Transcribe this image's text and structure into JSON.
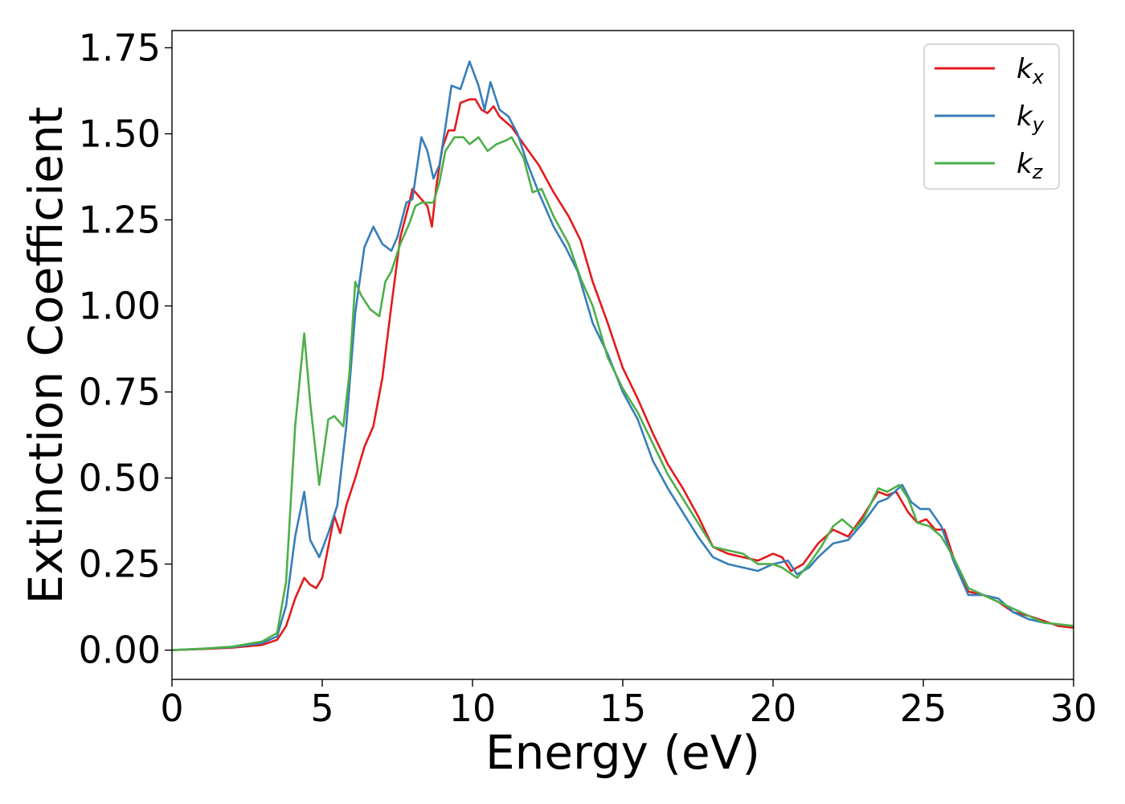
{
  "chart_data": {
    "type": "line",
    "title": "",
    "xlabel": "Energy (eV)",
    "ylabel": "Extinction Coefficient",
    "xlim": [
      0,
      30
    ],
    "ylim": [
      -0.085,
      1.8
    ],
    "xticks": [
      0,
      5,
      10,
      15,
      20,
      25,
      30
    ],
    "xtick_labels": [
      "0",
      "5",
      "10",
      "15",
      "20",
      "25",
      "30"
    ],
    "yticks": [
      0.0,
      0.25,
      0.5,
      0.75,
      1.0,
      1.25,
      1.5,
      1.75
    ],
    "ytick_labels": [
      "0.00",
      "0.25",
      "0.50",
      "0.75",
      "1.00",
      "1.25",
      "1.50",
      "1.75"
    ],
    "grid": false,
    "legend": {
      "position": "top-right",
      "entries": [
        {
          "base": "k",
          "sub": "x",
          "color": "#e41a1c"
        },
        {
          "base": "k",
          "sub": "y",
          "color": "#377eb8"
        },
        {
          "base": "k",
          "sub": "z",
          "color": "#4daf4a"
        }
      ]
    },
    "series": [
      {
        "name": "k_x",
        "color": "#e41a1c",
        "points": [
          [
            0,
            0
          ],
          [
            1,
            0.003
          ],
          [
            2,
            0.007
          ],
          [
            3,
            0.015
          ],
          [
            3.5,
            0.03
          ],
          [
            3.8,
            0.07
          ],
          [
            4.1,
            0.15
          ],
          [
            4.4,
            0.21
          ],
          [
            4.6,
            0.19
          ],
          [
            4.8,
            0.18
          ],
          [
            5.0,
            0.21
          ],
          [
            5.2,
            0.3
          ],
          [
            5.4,
            0.39
          ],
          [
            5.6,
            0.34
          ],
          [
            5.8,
            0.42
          ],
          [
            6.1,
            0.5
          ],
          [
            6.4,
            0.59
          ],
          [
            6.7,
            0.65
          ],
          [
            7.0,
            0.79
          ],
          [
            7.3,
            1.0
          ],
          [
            7.6,
            1.2
          ],
          [
            7.9,
            1.3
          ],
          [
            8.0,
            1.34
          ],
          [
            8.3,
            1.31
          ],
          [
            8.5,
            1.29
          ],
          [
            8.65,
            1.23
          ],
          [
            8.8,
            1.35
          ],
          [
            9.0,
            1.46
          ],
          [
            9.2,
            1.51
          ],
          [
            9.4,
            1.51
          ],
          [
            9.6,
            1.59
          ],
          [
            9.9,
            1.6
          ],
          [
            10.1,
            1.6
          ],
          [
            10.3,
            1.57
          ],
          [
            10.5,
            1.56
          ],
          [
            10.7,
            1.58
          ],
          [
            10.9,
            1.55
          ],
          [
            11.3,
            1.52
          ],
          [
            11.7,
            1.47
          ],
          [
            12.2,
            1.41
          ],
          [
            12.7,
            1.33
          ],
          [
            13.2,
            1.26
          ],
          [
            13.6,
            1.19
          ],
          [
            14.0,
            1.07
          ],
          [
            14.5,
            0.95
          ],
          [
            15.0,
            0.82
          ],
          [
            15.5,
            0.73
          ],
          [
            16.0,
            0.63
          ],
          [
            16.5,
            0.54
          ],
          [
            17.0,
            0.47
          ],
          [
            17.5,
            0.39
          ],
          [
            18.0,
            0.3
          ],
          [
            18.5,
            0.28
          ],
          [
            19.0,
            0.27
          ],
          [
            19.5,
            0.26
          ],
          [
            20.0,
            0.28
          ],
          [
            20.3,
            0.27
          ],
          [
            20.6,
            0.23
          ],
          [
            21.0,
            0.25
          ],
          [
            21.5,
            0.31
          ],
          [
            22.0,
            0.35
          ],
          [
            22.5,
            0.33
          ],
          [
            23.0,
            0.39
          ],
          [
            23.5,
            0.46
          ],
          [
            23.8,
            0.45
          ],
          [
            24.1,
            0.46
          ],
          [
            24.5,
            0.4
          ],
          [
            24.8,
            0.37
          ],
          [
            25.1,
            0.38
          ],
          [
            25.4,
            0.35
          ],
          [
            25.7,
            0.35
          ],
          [
            26.0,
            0.27
          ],
          [
            26.5,
            0.17
          ],
          [
            27.0,
            0.16
          ],
          [
            27.5,
            0.14
          ],
          [
            28.0,
            0.11
          ],
          [
            28.5,
            0.1
          ],
          [
            29.0,
            0.085
          ],
          [
            29.5,
            0.07
          ],
          [
            30.0,
            0.065
          ]
        ]
      },
      {
        "name": "k_y",
        "color": "#377eb8",
        "points": [
          [
            0,
            0
          ],
          [
            1,
            0.004
          ],
          [
            2,
            0.009
          ],
          [
            3,
            0.02
          ],
          [
            3.5,
            0.04
          ],
          [
            3.8,
            0.13
          ],
          [
            4.1,
            0.33
          ],
          [
            4.4,
            0.46
          ],
          [
            4.6,
            0.32
          ],
          [
            4.9,
            0.27
          ],
          [
            5.2,
            0.34
          ],
          [
            5.5,
            0.42
          ],
          [
            5.8,
            0.65
          ],
          [
            6.1,
            0.98
          ],
          [
            6.4,
            1.17
          ],
          [
            6.7,
            1.23
          ],
          [
            7.0,
            1.18
          ],
          [
            7.3,
            1.16
          ],
          [
            7.5,
            1.2
          ],
          [
            7.8,
            1.3
          ],
          [
            8.0,
            1.31
          ],
          [
            8.3,
            1.49
          ],
          [
            8.5,
            1.45
          ],
          [
            8.7,
            1.37
          ],
          [
            8.9,
            1.41
          ],
          [
            9.1,
            1.52
          ],
          [
            9.3,
            1.64
          ],
          [
            9.6,
            1.63
          ],
          [
            9.9,
            1.71
          ],
          [
            10.2,
            1.64
          ],
          [
            10.4,
            1.57
          ],
          [
            10.6,
            1.65
          ],
          [
            10.9,
            1.57
          ],
          [
            11.2,
            1.55
          ],
          [
            11.5,
            1.5
          ],
          [
            11.8,
            1.42
          ],
          [
            12.2,
            1.33
          ],
          [
            12.7,
            1.23
          ],
          [
            13.1,
            1.17
          ],
          [
            13.5,
            1.1
          ],
          [
            14.0,
            0.95
          ],
          [
            14.5,
            0.86
          ],
          [
            15.0,
            0.75
          ],
          [
            15.5,
            0.67
          ],
          [
            16.0,
            0.55
          ],
          [
            16.5,
            0.47
          ],
          [
            17.0,
            0.4
          ],
          [
            17.5,
            0.33
          ],
          [
            18.0,
            0.27
          ],
          [
            18.5,
            0.25
          ],
          [
            19.0,
            0.24
          ],
          [
            19.5,
            0.23
          ],
          [
            20.0,
            0.25
          ],
          [
            20.5,
            0.26
          ],
          [
            20.8,
            0.22
          ],
          [
            21.2,
            0.24
          ],
          [
            21.5,
            0.27
          ],
          [
            22.0,
            0.31
          ],
          [
            22.5,
            0.32
          ],
          [
            23.0,
            0.37
          ],
          [
            23.5,
            0.43
          ],
          [
            23.8,
            0.44
          ],
          [
            24.3,
            0.48
          ],
          [
            24.6,
            0.43
          ],
          [
            24.9,
            0.41
          ],
          [
            25.2,
            0.41
          ],
          [
            25.6,
            0.36
          ],
          [
            26.0,
            0.26
          ],
          [
            26.5,
            0.16
          ],
          [
            27.0,
            0.16
          ],
          [
            27.5,
            0.15
          ],
          [
            28.0,
            0.11
          ],
          [
            28.5,
            0.09
          ],
          [
            29.0,
            0.08
          ],
          [
            29.5,
            0.075
          ],
          [
            30.0,
            0.07
          ]
        ]
      },
      {
        "name": "k_z",
        "color": "#4daf4a",
        "points": [
          [
            0,
            0
          ],
          [
            1,
            0.004
          ],
          [
            2,
            0.01
          ],
          [
            3,
            0.025
          ],
          [
            3.5,
            0.05
          ],
          [
            3.8,
            0.2
          ],
          [
            4.1,
            0.65
          ],
          [
            4.4,
            0.92
          ],
          [
            4.6,
            0.72
          ],
          [
            4.9,
            0.48
          ],
          [
            5.2,
            0.67
          ],
          [
            5.4,
            0.68
          ],
          [
            5.7,
            0.65
          ],
          [
            5.9,
            0.8
          ],
          [
            6.1,
            1.07
          ],
          [
            6.3,
            1.03
          ],
          [
            6.6,
            0.99
          ],
          [
            6.9,
            0.97
          ],
          [
            7.1,
            1.07
          ],
          [
            7.3,
            1.1
          ],
          [
            7.6,
            1.18
          ],
          [
            7.9,
            1.24
          ],
          [
            8.1,
            1.29
          ],
          [
            8.3,
            1.3
          ],
          [
            8.5,
            1.3
          ],
          [
            8.7,
            1.3
          ],
          [
            8.9,
            1.36
          ],
          [
            9.1,
            1.45
          ],
          [
            9.4,
            1.49
          ],
          [
            9.7,
            1.49
          ],
          [
            9.9,
            1.47
          ],
          [
            10.2,
            1.49
          ],
          [
            10.5,
            1.45
          ],
          [
            10.8,
            1.47
          ],
          [
            11.1,
            1.48
          ],
          [
            11.3,
            1.49
          ],
          [
            11.7,
            1.43
          ],
          [
            12.0,
            1.33
          ],
          [
            12.3,
            1.34
          ],
          [
            12.7,
            1.26
          ],
          [
            13.2,
            1.18
          ],
          [
            13.6,
            1.08
          ],
          [
            14.0,
            1.0
          ],
          [
            14.5,
            0.85
          ],
          [
            15.0,
            0.76
          ],
          [
            15.5,
            0.69
          ],
          [
            16.0,
            0.6
          ],
          [
            16.5,
            0.51
          ],
          [
            17.0,
            0.44
          ],
          [
            17.5,
            0.37
          ],
          [
            18.0,
            0.3
          ],
          [
            18.5,
            0.29
          ],
          [
            19.0,
            0.28
          ],
          [
            19.5,
            0.25
          ],
          [
            20.0,
            0.25
          ],
          [
            20.3,
            0.24
          ],
          [
            20.8,
            0.21
          ],
          [
            21.2,
            0.25
          ],
          [
            21.6,
            0.3
          ],
          [
            22.0,
            0.36
          ],
          [
            22.3,
            0.38
          ],
          [
            22.7,
            0.35
          ],
          [
            23.0,
            0.38
          ],
          [
            23.5,
            0.47
          ],
          [
            23.8,
            0.46
          ],
          [
            24.2,
            0.48
          ],
          [
            24.5,
            0.44
          ],
          [
            24.8,
            0.37
          ],
          [
            25.2,
            0.36
          ],
          [
            25.6,
            0.33
          ],
          [
            26.0,
            0.27
          ],
          [
            26.5,
            0.18
          ],
          [
            27.0,
            0.16
          ],
          [
            27.5,
            0.14
          ],
          [
            28.0,
            0.12
          ],
          [
            28.5,
            0.1
          ],
          [
            29.0,
            0.08
          ],
          [
            29.5,
            0.075
          ],
          [
            30.0,
            0.07
          ]
        ]
      }
    ]
  }
}
